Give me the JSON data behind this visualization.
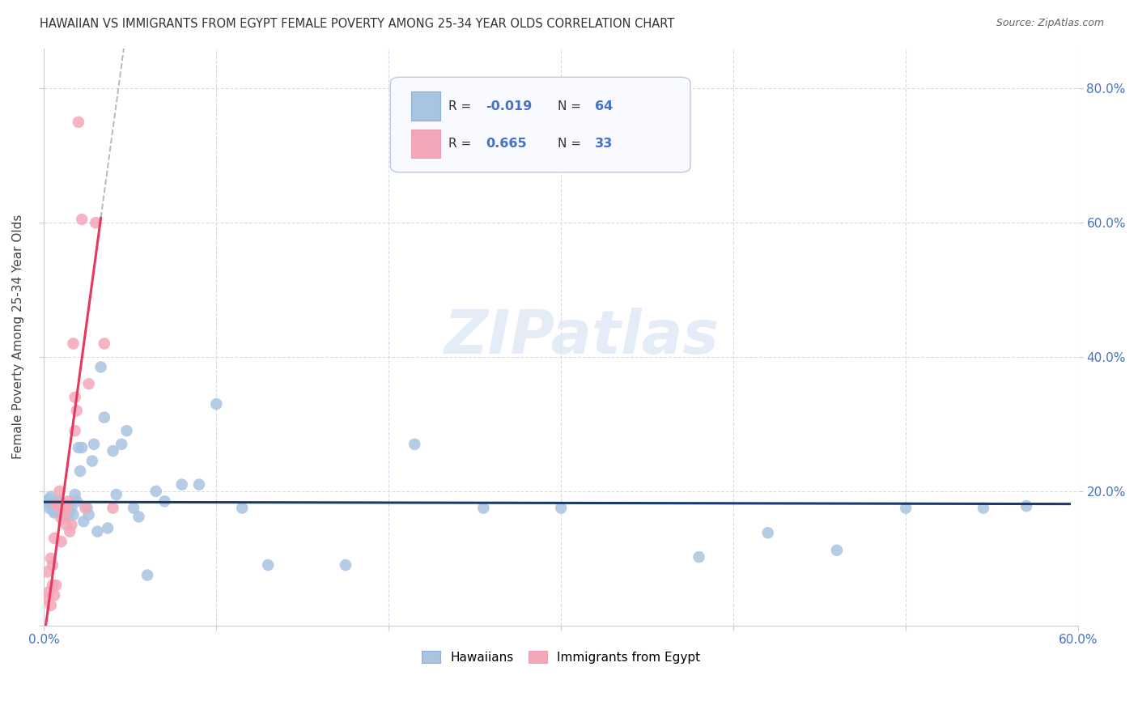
{
  "title": "HAWAIIAN VS IMMIGRANTS FROM EGYPT FEMALE POVERTY AMONG 25-34 YEAR OLDS CORRELATION CHART",
  "source": "Source: ZipAtlas.com",
  "ylabel": "Female Poverty Among 25-34 Year Olds",
  "xlim": [
    0.0,
    0.6
  ],
  "ylim": [
    0.0,
    0.86
  ],
  "hawaiian_color": "#a8c4e0",
  "egypt_color": "#f4a7b9",
  "hawaiian_line_color": "#1a3a6b",
  "egypt_line_color": "#e8365d",
  "R_hawaiian": -0.019,
  "N_hawaiian": 64,
  "R_egypt": 0.665,
  "N_egypt": 33,
  "hawaiian_x": [
    0.001,
    0.002,
    0.003,
    0.003,
    0.004,
    0.004,
    0.005,
    0.005,
    0.006,
    0.006,
    0.007,
    0.007,
    0.008,
    0.008,
    0.009,
    0.01,
    0.01,
    0.011,
    0.011,
    0.012,
    0.012,
    0.013,
    0.014,
    0.015,
    0.016,
    0.017,
    0.018,
    0.019,
    0.02,
    0.021,
    0.022,
    0.023,
    0.025,
    0.026,
    0.028,
    0.029,
    0.031,
    0.033,
    0.035,
    0.037,
    0.04,
    0.042,
    0.045,
    0.048,
    0.052,
    0.055,
    0.06,
    0.065,
    0.07,
    0.08,
    0.09,
    0.1,
    0.115,
    0.13,
    0.175,
    0.215,
    0.255,
    0.3,
    0.38,
    0.42,
    0.46,
    0.5,
    0.545,
    0.57
  ],
  "hawaiian_y": [
    0.185,
    0.182,
    0.175,
    0.188,
    0.178,
    0.192,
    0.172,
    0.18,
    0.168,
    0.178,
    0.17,
    0.183,
    0.178,
    0.185,
    0.175,
    0.17,
    0.183,
    0.178,
    0.168,
    0.163,
    0.175,
    0.178,
    0.165,
    0.17,
    0.175,
    0.165,
    0.195,
    0.185,
    0.265,
    0.23,
    0.265,
    0.155,
    0.175,
    0.165,
    0.245,
    0.27,
    0.14,
    0.385,
    0.31,
    0.145,
    0.26,
    0.195,
    0.27,
    0.29,
    0.175,
    0.162,
    0.075,
    0.2,
    0.185,
    0.21,
    0.21,
    0.33,
    0.175,
    0.09,
    0.09,
    0.27,
    0.175,
    0.175,
    0.102,
    0.138,
    0.112,
    0.175,
    0.175,
    0.178
  ],
  "egypt_x": [
    0.001,
    0.002,
    0.003,
    0.004,
    0.004,
    0.005,
    0.005,
    0.006,
    0.006,
    0.007,
    0.007,
    0.008,
    0.009,
    0.01,
    0.01,
    0.011,
    0.012,
    0.013,
    0.013,
    0.014,
    0.015,
    0.016,
    0.017,
    0.018,
    0.018,
    0.019,
    0.02,
    0.022,
    0.024,
    0.026,
    0.03,
    0.035,
    0.04
  ],
  "egypt_y": [
    0.04,
    0.08,
    0.05,
    0.03,
    0.1,
    0.06,
    0.09,
    0.13,
    0.045,
    0.06,
    0.18,
    0.18,
    0.2,
    0.16,
    0.125,
    0.175,
    0.165,
    0.175,
    0.15,
    0.185,
    0.14,
    0.15,
    0.42,
    0.29,
    0.34,
    0.32,
    0.75,
    0.605,
    0.175,
    0.36,
    0.6,
    0.42,
    0.175
  ],
  "watermark": "ZIPatlas",
  "background_color": "#ffffff",
  "grid_color": "#d0d8e8"
}
